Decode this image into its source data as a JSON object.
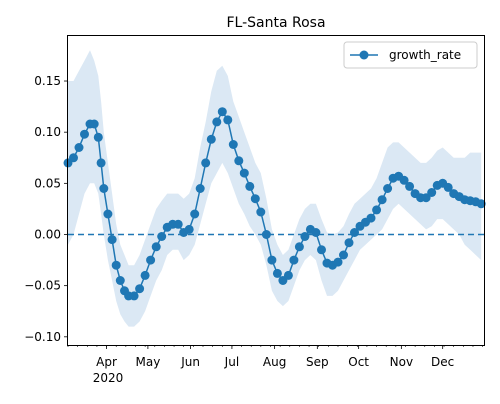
{
  "chart_data": {
    "type": "line",
    "title": "FL-Santa Rosa",
    "xlabel": "",
    "ylabel": "",
    "x_range": [
      "2020-03-04",
      "2020-12-31"
    ],
    "ylim": [
      -0.108,
      0.194
    ],
    "grid": false,
    "legend_position": "upper right",
    "x_ticks": [
      {
        "date": "2020-04-01",
        "label": "Apr"
      },
      {
        "date": "2020-05-01",
        "label": "May"
      },
      {
        "date": "2020-06-01",
        "label": "Jun"
      },
      {
        "date": "2020-07-01",
        "label": "Jul"
      },
      {
        "date": "2020-08-01",
        "label": "Aug"
      },
      {
        "date": "2020-09-01",
        "label": "Sep"
      },
      {
        "date": "2020-10-01",
        "label": "Oct"
      },
      {
        "date": "2020-11-01",
        "label": "Nov"
      },
      {
        "date": "2020-12-01",
        "label": "Dec"
      }
    ],
    "x_year_label": "2020",
    "y_ticks": [
      -0.1,
      -0.05,
      0.0,
      0.05,
      0.1,
      0.15
    ],
    "y_tick_labels": [
      "−0.10",
      "−0.05",
      "0.00",
      "0.05",
      "0.10",
      "0.15"
    ],
    "reference_line": {
      "y": 0.0,
      "style": "dashed"
    },
    "series": [
      {
        "name": "growth_rate",
        "color": "#1f77b4",
        "marker": "circle",
        "band_color": "#dbe8f4",
        "points": [
          {
            "x": "2020-03-04",
            "y": 0.07,
            "lo": -0.01,
            "hi": 0.15
          },
          {
            "x": "2020-03-08",
            "y": 0.075,
            "lo": 0.0,
            "hi": 0.15
          },
          {
            "x": "2020-03-12",
            "y": 0.085,
            "lo": 0.02,
            "hi": 0.16
          },
          {
            "x": "2020-03-16",
            "y": 0.098,
            "lo": 0.04,
            "hi": 0.17
          },
          {
            "x": "2020-03-20",
            "y": 0.108,
            "lo": 0.05,
            "hi": 0.18
          },
          {
            "x": "2020-03-23",
            "y": 0.108,
            "lo": 0.05,
            "hi": 0.17
          },
          {
            "x": "2020-03-26",
            "y": 0.095,
            "lo": 0.04,
            "hi": 0.155
          },
          {
            "x": "2020-03-28",
            "y": 0.07,
            "lo": 0.02,
            "hi": 0.13
          },
          {
            "x": "2020-03-30",
            "y": 0.045,
            "lo": 0.0,
            "hi": 0.1
          },
          {
            "x": "2020-04-02",
            "y": 0.02,
            "lo": -0.025,
            "hi": 0.07
          },
          {
            "x": "2020-04-05",
            "y": -0.005,
            "lo": -0.045,
            "hi": 0.04
          },
          {
            "x": "2020-04-08",
            "y": -0.03,
            "lo": -0.065,
            "hi": 0.01
          },
          {
            "x": "2020-04-11",
            "y": -0.045,
            "lo": -0.078,
            "hi": -0.01
          },
          {
            "x": "2020-04-14",
            "y": -0.055,
            "lo": -0.085,
            "hi": -0.02
          },
          {
            "x": "2020-04-17",
            "y": -0.06,
            "lo": -0.09,
            "hi": -0.03
          },
          {
            "x": "2020-04-21",
            "y": -0.06,
            "lo": -0.09,
            "hi": -0.03
          },
          {
            "x": "2020-04-25",
            "y": -0.053,
            "lo": -0.085,
            "hi": -0.02
          },
          {
            "x": "2020-04-29",
            "y": -0.04,
            "lo": -0.075,
            "hi": -0.005
          },
          {
            "x": "2020-05-03",
            "y": -0.025,
            "lo": -0.06,
            "hi": 0.01
          },
          {
            "x": "2020-05-07",
            "y": -0.012,
            "lo": -0.045,
            "hi": 0.025
          },
          {
            "x": "2020-05-11",
            "y": -0.002,
            "lo": -0.035,
            "hi": 0.033
          },
          {
            "x": "2020-05-15",
            "y": 0.007,
            "lo": -0.02,
            "hi": 0.04
          },
          {
            "x": "2020-05-19",
            "y": 0.01,
            "lo": -0.015,
            "hi": 0.04
          },
          {
            "x": "2020-05-23",
            "y": 0.01,
            "lo": -0.015,
            "hi": 0.04
          },
          {
            "x": "2020-05-27",
            "y": 0.002,
            "lo": -0.025,
            "hi": 0.035
          },
          {
            "x": "2020-05-31",
            "y": 0.005,
            "lo": -0.02,
            "hi": 0.04
          },
          {
            "x": "2020-06-04",
            "y": 0.02,
            "lo": -0.01,
            "hi": 0.055
          },
          {
            "x": "2020-06-08",
            "y": 0.045,
            "lo": 0.01,
            "hi": 0.085
          },
          {
            "x": "2020-06-12",
            "y": 0.07,
            "lo": 0.03,
            "hi": 0.11
          },
          {
            "x": "2020-06-16",
            "y": 0.093,
            "lo": 0.05,
            "hi": 0.14
          },
          {
            "x": "2020-06-20",
            "y": 0.11,
            "lo": 0.06,
            "hi": 0.16
          },
          {
            "x": "2020-06-24",
            "y": 0.12,
            "lo": 0.07,
            "hi": 0.165
          },
          {
            "x": "2020-06-28",
            "y": 0.112,
            "lo": 0.06,
            "hi": 0.155
          },
          {
            "x": "2020-07-02",
            "y": 0.088,
            "lo": 0.045,
            "hi": 0.13
          },
          {
            "x": "2020-07-06",
            "y": 0.072,
            "lo": 0.03,
            "hi": 0.115
          },
          {
            "x": "2020-07-10",
            "y": 0.06,
            "lo": 0.02,
            "hi": 0.1
          },
          {
            "x": "2020-07-14",
            "y": 0.047,
            "lo": 0.008,
            "hi": 0.085
          },
          {
            "x": "2020-07-18",
            "y": 0.035,
            "lo": 0.0,
            "hi": 0.07
          },
          {
            "x": "2020-07-22",
            "y": 0.022,
            "lo": -0.01,
            "hi": 0.06
          },
          {
            "x": "2020-07-26",
            "y": 0.0,
            "lo": -0.03,
            "hi": 0.035
          },
          {
            "x": "2020-07-30",
            "y": -0.025,
            "lo": -0.055,
            "hi": 0.005
          },
          {
            "x": "2020-08-03",
            "y": -0.038,
            "lo": -0.065,
            "hi": -0.01
          },
          {
            "x": "2020-08-07",
            "y": -0.045,
            "lo": -0.07,
            "hi": -0.02
          },
          {
            "x": "2020-08-11",
            "y": -0.04,
            "lo": -0.065,
            "hi": -0.015
          },
          {
            "x": "2020-08-15",
            "y": -0.025,
            "lo": -0.05,
            "hi": 0.0
          },
          {
            "x": "2020-08-19",
            "y": -0.012,
            "lo": -0.035,
            "hi": 0.015
          },
          {
            "x": "2020-08-23",
            "y": -0.002,
            "lo": -0.025,
            "hi": 0.025
          },
          {
            "x": "2020-08-27",
            "y": 0.005,
            "lo": -0.02,
            "hi": 0.03
          },
          {
            "x": "2020-08-31",
            "y": 0.002,
            "lo": -0.025,
            "hi": 0.03
          },
          {
            "x": "2020-09-04",
            "y": -0.015,
            "lo": -0.045,
            "hi": 0.015
          },
          {
            "x": "2020-09-08",
            "y": -0.028,
            "lo": -0.06,
            "hi": 0.002
          },
          {
            "x": "2020-09-12",
            "y": -0.03,
            "lo": -0.06,
            "hi": 0.0
          },
          {
            "x": "2020-09-16",
            "y": -0.027,
            "lo": -0.055,
            "hi": 0.002
          },
          {
            "x": "2020-09-20",
            "y": -0.02,
            "lo": -0.045,
            "hi": 0.008
          },
          {
            "x": "2020-09-24",
            "y": -0.008,
            "lo": -0.035,
            "hi": 0.02
          },
          {
            "x": "2020-09-28",
            "y": 0.002,
            "lo": -0.025,
            "hi": 0.03
          },
          {
            "x": "2020-10-02",
            "y": 0.008,
            "lo": -0.015,
            "hi": 0.035
          },
          {
            "x": "2020-10-06",
            "y": 0.012,
            "lo": -0.01,
            "hi": 0.04
          },
          {
            "x": "2020-10-10",
            "y": 0.016,
            "lo": -0.005,
            "hi": 0.045
          },
          {
            "x": "2020-10-14",
            "y": 0.024,
            "lo": 0.0,
            "hi": 0.055
          },
          {
            "x": "2020-10-18",
            "y": 0.034,
            "lo": 0.005,
            "hi": 0.07
          },
          {
            "x": "2020-10-22",
            "y": 0.045,
            "lo": 0.015,
            "hi": 0.085
          },
          {
            "x": "2020-10-26",
            "y": 0.055,
            "lo": 0.025,
            "hi": 0.09
          },
          {
            "x": "2020-10-30",
            "y": 0.057,
            "lo": 0.03,
            "hi": 0.09
          },
          {
            "x": "2020-11-03",
            "y": 0.053,
            "lo": 0.025,
            "hi": 0.085
          },
          {
            "x": "2020-11-07",
            "y": 0.047,
            "lo": 0.02,
            "hi": 0.08
          },
          {
            "x": "2020-11-11",
            "y": 0.04,
            "lo": 0.015,
            "hi": 0.075
          },
          {
            "x": "2020-11-15",
            "y": 0.036,
            "lo": 0.01,
            "hi": 0.07
          },
          {
            "x": "2020-11-19",
            "y": 0.036,
            "lo": 0.005,
            "hi": 0.07
          },
          {
            "x": "2020-11-23",
            "y": 0.041,
            "lo": 0.008,
            "hi": 0.075
          },
          {
            "x": "2020-11-27",
            "y": 0.048,
            "lo": 0.015,
            "hi": 0.082
          },
          {
            "x": "2020-12-01",
            "y": 0.05,
            "lo": 0.015,
            "hi": 0.085
          },
          {
            "x": "2020-12-05",
            "y": 0.046,
            "lo": 0.01,
            "hi": 0.08
          },
          {
            "x": "2020-12-09",
            "y": 0.04,
            "lo": 0.005,
            "hi": 0.075
          },
          {
            "x": "2020-12-13",
            "y": 0.037,
            "lo": 0.0,
            "hi": 0.075
          },
          {
            "x": "2020-12-17",
            "y": 0.034,
            "lo": -0.01,
            "hi": 0.075
          },
          {
            "x": "2020-12-21",
            "y": 0.033,
            "lo": -0.015,
            "hi": 0.08
          },
          {
            "x": "2020-12-25",
            "y": 0.032,
            "lo": -0.02,
            "hi": 0.08
          },
          {
            "x": "2020-12-29",
            "y": 0.03,
            "lo": -0.025,
            "hi": 0.08
          }
        ]
      }
    ]
  }
}
